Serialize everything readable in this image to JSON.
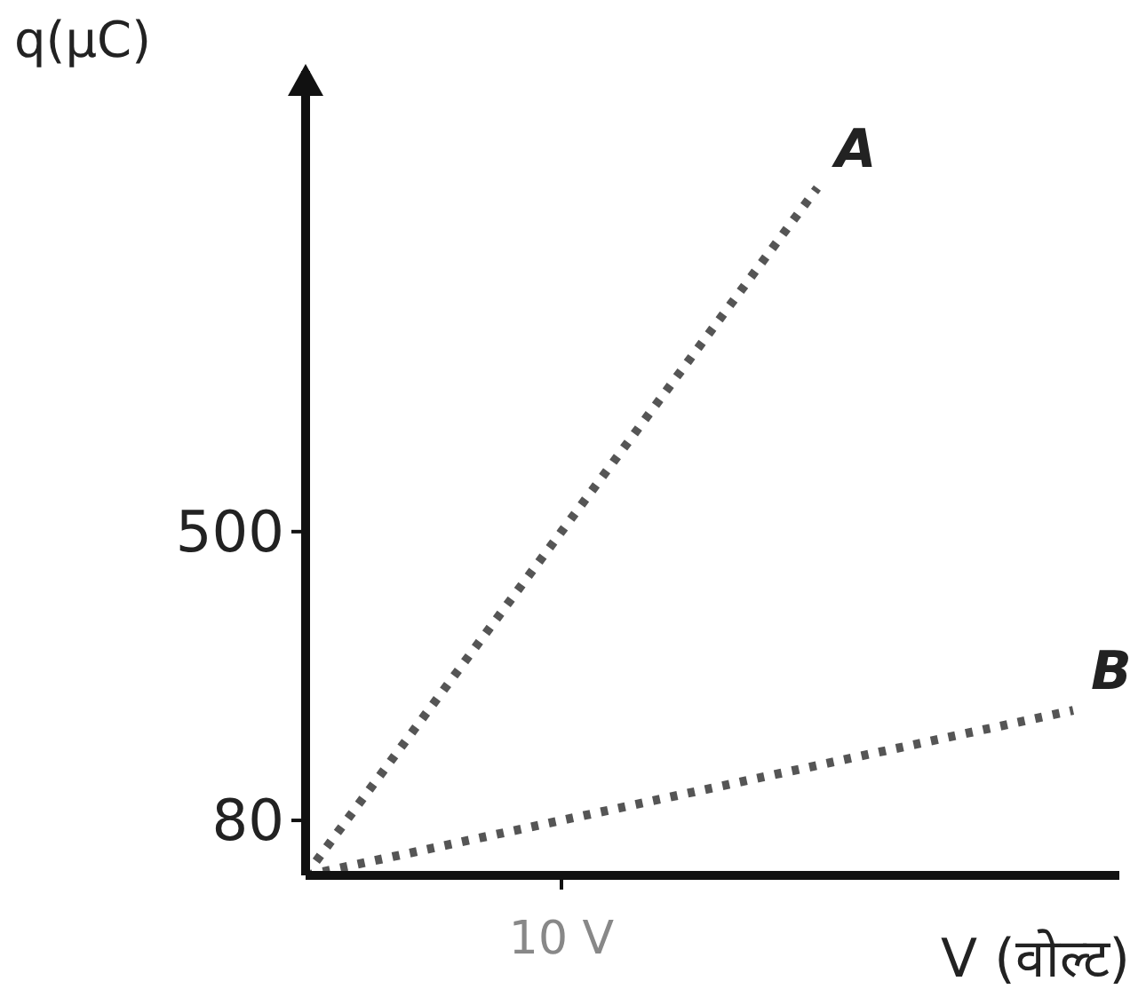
{
  "chart_data": {
    "type": "line",
    "xlabel": "V (वोल्ट)",
    "ylabel": "q(μC)",
    "categories": [
      null,
      "10 V",
      null,
      null
    ],
    "ylim": [
      0,
      1170
    ],
    "yticks": [
      80,
      500
    ],
    "legend": false,
    "line_style": "dotted",
    "marker": "none",
    "series": [
      {
        "name": "A",
        "color": "#555555",
        "values": [
          0,
          500,
          1000,
          null
        ]
      },
      {
        "name": "B",
        "color": "#555555",
        "values": [
          0,
          80,
          160,
          240
        ]
      }
    ]
  }
}
